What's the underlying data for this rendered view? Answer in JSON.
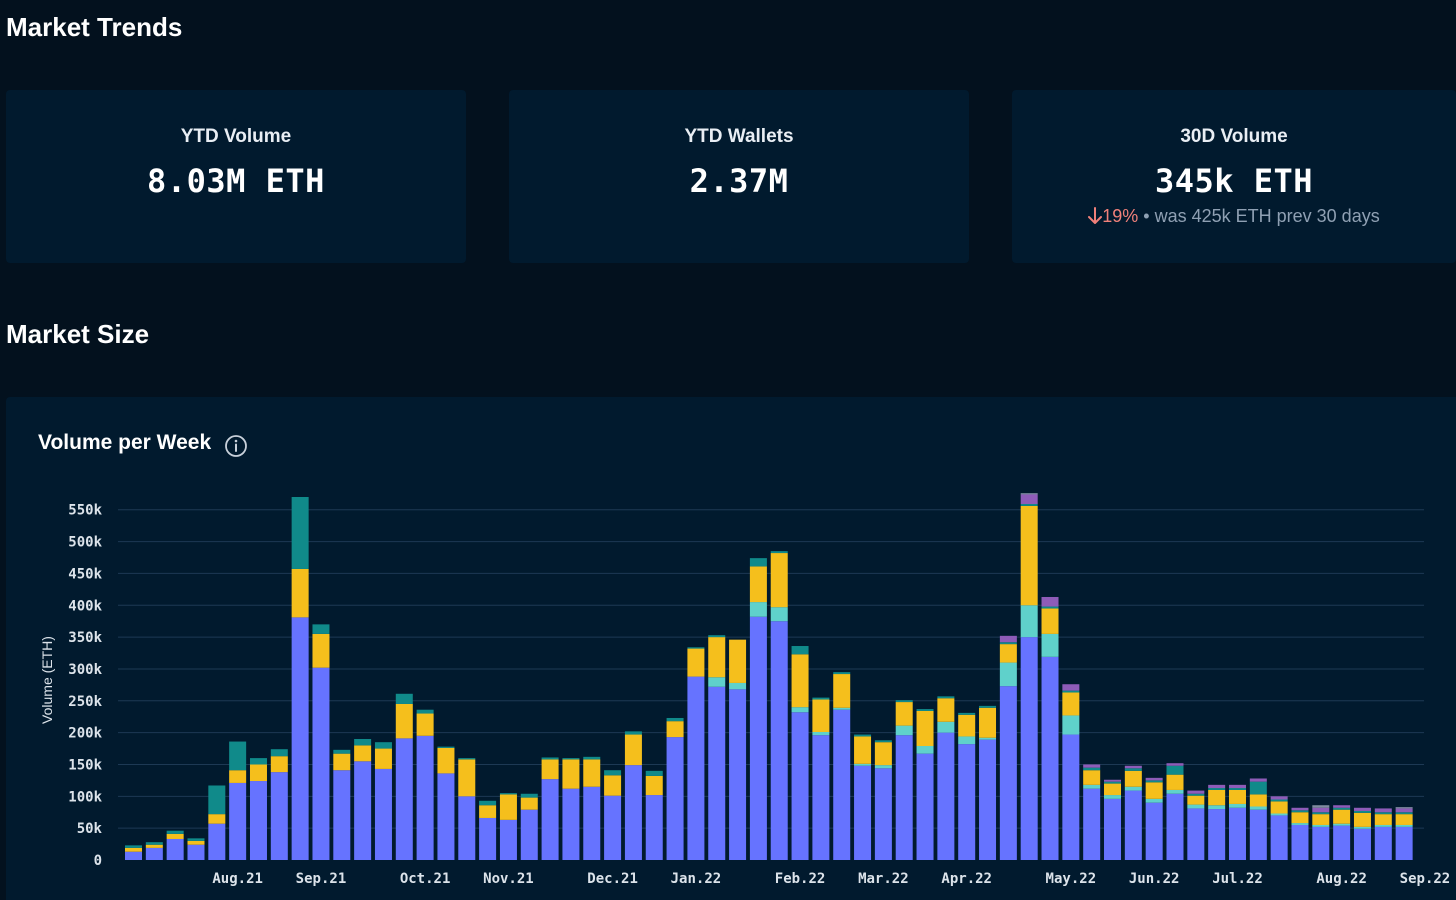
{
  "header": {
    "title": "Market Trends"
  },
  "stats": [
    {
      "label": "YTD Volume",
      "value": "8.03M ETH"
    },
    {
      "label": "YTD Wallets",
      "value": "2.37M"
    },
    {
      "label": "30D Volume",
      "value": "345k ETH",
      "change": "19%",
      "change_note": " • was 425k ETH prev 30 days"
    }
  ],
  "market_size": {
    "title": "Market Size"
  },
  "colors": {
    "blue": "#6673ff",
    "teal": "#5fd1cb",
    "yellow": "#f5bf1c",
    "darkteal": "#108a8a",
    "purple": "#8e5cb8",
    "grey": "#7f8ca0"
  },
  "chart_data": {
    "type": "bar",
    "stacked": true,
    "title": "Volume per Week",
    "ylabel": "Volume (ETH)",
    "ylim": [
      0,
      570000
    ],
    "yticks": [
      0,
      50000,
      100000,
      150000,
      200000,
      250000,
      300000,
      350000,
      400000,
      450000,
      500000,
      550000
    ],
    "ytick_labels": [
      "0",
      "50k",
      "100k",
      "150k",
      "200k",
      "250k",
      "300k",
      "350k",
      "400k",
      "450k",
      "500k",
      "550k"
    ],
    "xtick_labels": [
      {
        "label": "Aug.21",
        "index": 5
      },
      {
        "label": "Sep.21",
        "index": 9
      },
      {
        "label": "Oct.21",
        "index": 14
      },
      {
        "label": "Nov.21",
        "index": 18
      },
      {
        "label": "Dec.21",
        "index": 23
      },
      {
        "label": "Jan.22",
        "index": 27
      },
      {
        "label": "Feb.22",
        "index": 32
      },
      {
        "label": "Mar.22",
        "index": 36
      },
      {
        "label": "Apr.22",
        "index": 40
      },
      {
        "label": "May.22",
        "index": 45
      },
      {
        "label": "Jun.22",
        "index": 49
      },
      {
        "label": "Jul.22",
        "index": 53
      },
      {
        "label": "Aug.22",
        "index": 58
      },
      {
        "label": "Sep.22",
        "index": 62
      }
    ],
    "series": [
      {
        "color": "#6673ff",
        "values": [
          13000,
          19000,
          33000,
          24000,
          57000,
          121000,
          124000,
          138000,
          381000,
          302000,
          141000,
          155000,
          143000,
          191000,
          195000,
          136000,
          100000,
          66000,
          63000,
          79000,
          127000,
          112000,
          115000,
          101000,
          149000,
          102000,
          193000,
          288000,
          272000,
          268000,
          382000,
          375000,
          232000,
          196000,
          236000,
          148000,
          144000,
          196000,
          167000,
          200000,
          182000,
          189000,
          273000,
          350000,
          319000,
          197000,
          112000,
          96000,
          109000,
          90000,
          104000,
          81000,
          80000,
          82000,
          79000,
          70000,
          55000,
          52000,
          54000,
          49000,
          52000,
          52000
        ]
      },
      {
        "color": "#5fd1cb",
        "values": [
          0,
          0,
          0,
          0,
          0,
          0,
          0,
          0,
          0,
          0,
          0,
          0,
          0,
          0,
          0,
          0,
          0,
          0,
          0,
          0,
          0,
          0,
          0,
          0,
          0,
          0,
          0,
          0,
          15000,
          10000,
          23000,
          22000,
          8000,
          5000,
          3000,
          3000,
          5000,
          15000,
          12000,
          17000,
          12000,
          3000,
          37000,
          50000,
          36000,
          30000,
          6000,
          6000,
          6000,
          6000,
          6000,
          6000,
          6000,
          6000,
          5000,
          3000,
          3000,
          3000,
          3000,
          3000,
          3000,
          3000
        ]
      },
      {
        "color": "#f5bf1c",
        "values": [
          6000,
          5000,
          8000,
          6000,
          15000,
          20000,
          26000,
          25000,
          76000,
          53000,
          26000,
          25000,
          32000,
          54000,
          35000,
          40000,
          58000,
          20000,
          40000,
          19000,
          31000,
          46000,
          43000,
          32000,
          48000,
          30000,
          25000,
          44000,
          63000,
          68000,
          56000,
          85000,
          83000,
          51000,
          53000,
          43000,
          36000,
          37000,
          55000,
          37000,
          34000,
          47000,
          29000,
          156000,
          40000,
          36000,
          23000,
          18000,
          25000,
          26000,
          24000,
          14000,
          24000,
          22000,
          19000,
          19000,
          17000,
          17000,
          22000,
          22000,
          17000,
          17000
        ]
      },
      {
        "color": "#108a8a",
        "values": [
          4000,
          4000,
          5000,
          4000,
          45000,
          45000,
          10000,
          11000,
          113000,
          15000,
          6000,
          10000,
          10000,
          16000,
          6000,
          2000,
          2000,
          7000,
          2000,
          6000,
          3000,
          2000,
          4000,
          8000,
          5000,
          8000,
          5000,
          2000,
          3000,
          0,
          13000,
          3000,
          13000,
          3000,
          3000,
          3000,
          3000,
          3000,
          3000,
          3000,
          3000,
          3000,
          3000,
          3000,
          3000,
          3000,
          4000,
          3000,
          4000,
          3000,
          14000,
          3000,
          3000,
          3000,
          20000,
          3000,
          3000,
          3000,
          3000,
          3000,
          3000,
          3000
        ]
      },
      {
        "color": "#8e5cb8",
        "values": [
          0,
          0,
          0,
          0,
          0,
          0,
          0,
          0,
          0,
          0,
          0,
          0,
          0,
          0,
          0,
          0,
          0,
          0,
          0,
          0,
          0,
          0,
          0,
          0,
          0,
          0,
          0,
          0,
          0,
          0,
          0,
          0,
          0,
          0,
          0,
          0,
          0,
          0,
          0,
          0,
          0,
          0,
          10000,
          15000,
          15000,
          10000,
          5000,
          3000,
          4000,
          4000,
          4000,
          5000,
          5000,
          5000,
          5000,
          5000,
          4000,
          7000,
          4000,
          5000,
          6000,
          6000
        ]
      },
      {
        "color": "#7f8ca0",
        "values": [
          0,
          0,
          0,
          0,
          0,
          0,
          0,
          0,
          0,
          0,
          0,
          0,
          0,
          0,
          0,
          0,
          0,
          0,
          0,
          0,
          0,
          0,
          0,
          0,
          0,
          0,
          0,
          0,
          0,
          0,
          0,
          0,
          0,
          0,
          0,
          0,
          0,
          0,
          0,
          0,
          0,
          0,
          0,
          2000,
          0,
          0,
          0,
          0,
          0,
          0,
          0,
          0,
          0,
          0,
          0,
          0,
          0,
          4000,
          0,
          0,
          0,
          2000
        ]
      }
    ]
  }
}
